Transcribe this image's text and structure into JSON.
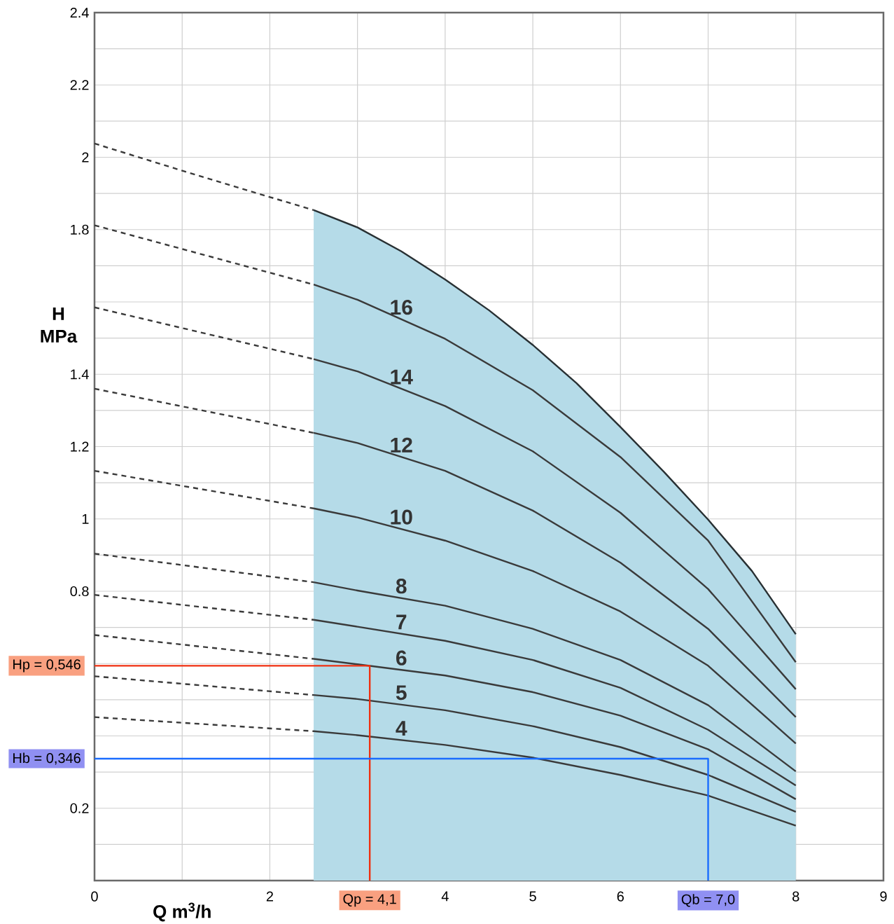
{
  "chart_data": {
    "type": "line",
    "xlabel": "Q m$^{3}$/h",
    "ylabel": "H MPa",
    "xlim": [
      0,
      9
    ],
    "ylim": [
      0,
      2.4
    ],
    "xticks": [
      0,
      {
        "value": 1,
        "label": null
      },
      2,
      {
        "value": 3,
        "label": null
      },
      4,
      5,
      6,
      {
        "value": 7,
        "label": null
      },
      8,
      9
    ],
    "yticks": [
      {
        "value": 0,
        "label": null
      },
      {
        "value": 0.1,
        "label": null
      },
      0.2,
      {
        "value": 0.3,
        "label": null
      },
      {
        "value": 0.4,
        "label": null
      },
      {
        "value": 0.5,
        "label": null
      },
      {
        "value": 0.6,
        "label": null
      },
      {
        "value": 0.7,
        "label": null
      },
      0.8,
      {
        "value": 0.9,
        "label": null
      },
      1,
      {
        "value": 1.1,
        "label": null
      },
      1.2,
      {
        "value": 1.3,
        "label": null
      },
      1.4,
      {
        "value": 1.5,
        "label": null
      },
      {
        "value": 1.6,
        "label": null
      },
      {
        "value": 1.7,
        "label": null
      },
      1.8,
      {
        "value": 1.9,
        "label": null
      },
      2,
      {
        "value": 2.1,
        "label": null
      },
      2.2,
      {
        "value": 2.3,
        "label": null
      },
      2.4
    ],
    "grid": true,
    "series": [
      {
        "name": "16",
        "color": "#3a3a3a",
        "x": [
          2.5,
          3,
          4,
          5,
          6,
          7,
          8
        ],
        "values": [
          1.648,
          1.606,
          1.498,
          1.356,
          1.171,
          0.94,
          0.604
        ]
      },
      {
        "name": "14",
        "color": "#3a3a3a",
        "x": [
          2.5,
          3,
          4,
          5,
          6,
          7,
          8
        ],
        "values": [
          1.442,
          1.408,
          1.312,
          1.187,
          1.017,
          0.806,
          0.529
        ]
      },
      {
        "name": "12",
        "color": "#3a3a3a",
        "x": [
          2.5,
          3,
          4,
          5,
          6,
          7,
          8
        ],
        "values": [
          1.238,
          1.21,
          1.133,
          1.023,
          0.879,
          0.696,
          0.452
        ]
      },
      {
        "name": "10",
        "color": "#3a3a3a",
        "x": [
          2.5,
          3,
          4,
          5,
          6,
          7,
          8
        ],
        "values": [
          1.029,
          1.004,
          0.94,
          0.856,
          0.744,
          0.594,
          0.379
        ]
      },
      {
        "name": "8",
        "color": "#3a3a3a",
        "x": [
          2.5,
          3,
          4,
          5,
          6,
          7,
          8
        ],
        "values": [
          0.825,
          0.802,
          0.76,
          0.696,
          0.61,
          0.485,
          0.302
        ]
      },
      {
        "name": "7",
        "color": "#3a3a3a",
        "x": [
          2.5,
          3,
          4,
          5,
          6,
          7,
          8
        ],
        "values": [
          0.721,
          0.702,
          0.663,
          0.61,
          0.533,
          0.417,
          0.263
        ]
      },
      {
        "name": "6",
        "color": "#3a3a3a",
        "x": [
          2.5,
          3,
          4,
          5,
          6,
          7,
          8
        ],
        "values": [
          0.613,
          0.598,
          0.567,
          0.521,
          0.456,
          0.363,
          0.225
        ]
      },
      {
        "name": "5",
        "color": "#3a3a3a",
        "x": [
          2.5,
          3,
          4,
          5,
          6,
          7,
          8
        ],
        "values": [
          0.513,
          0.502,
          0.471,
          0.427,
          0.369,
          0.292,
          0.19
        ]
      },
      {
        "name": "4",
        "color": "#3a3a3a",
        "x": [
          2.5,
          3,
          4,
          5,
          6,
          7,
          8
        ],
        "values": [
          0.413,
          0.402,
          0.375,
          0.34,
          0.292,
          0.235,
          0.152
        ]
      },
      {
        "color": "#3a3a3a",
        "line_style": "dashed",
        "x": [
          0,
          1,
          2,
          2.5
        ],
        "values": [
          2.038,
          1.963,
          1.89,
          1.854
        ]
      },
      {
        "color": "#3a3a3a",
        "line_style": "dashed",
        "x": [
          0,
          2.5
        ],
        "values": [
          1.812,
          1.648
        ]
      },
      {
        "color": "#3a3a3a",
        "line_style": "dashed",
        "x": [
          0,
          2.5
        ],
        "values": [
          1.585,
          1.442
        ]
      },
      {
        "color": "#3a3a3a",
        "line_style": "dashed",
        "x": [
          0,
          2.5
        ],
        "values": [
          1.36,
          1.238
        ]
      },
      {
        "color": "#3a3a3a",
        "line_style": "dashed",
        "x": [
          0,
          2.5
        ],
        "values": [
          1.133,
          1.029
        ]
      },
      {
        "color": "#3a3a3a",
        "line_style": "dashed",
        "x": [
          0,
          2.5
        ],
        "values": [
          0.904,
          0.825
        ]
      },
      {
        "color": "#3a3a3a",
        "line_style": "dashed",
        "x": [
          0,
          2.5
        ],
        "values": [
          0.79,
          0.721
        ]
      },
      {
        "color": "#3a3a3a",
        "line_style": "dashed",
        "x": [
          0,
          2.5
        ],
        "values": [
          0.679,
          0.613
        ]
      },
      {
        "color": "#3a3a3a",
        "line_style": "dashed",
        "x": [
          0,
          2.5
        ],
        "values": [
          0.565,
          0.513
        ]
      },
      {
        "color": "#3a3a3a",
        "line_style": "dashed",
        "x": [
          0,
          2.5
        ],
        "values": [
          0.452,
          0.413
        ]
      },
      {
        "color": "#f03010",
        "x": [
          0,
          3.14,
          3.14
        ],
        "values": [
          0.594,
          0.594,
          0
        ]
      },
      {
        "color": "#1a6cff",
        "x": [
          0,
          7.0,
          7.0
        ],
        "values": [
          0.337,
          0.337,
          0
        ]
      },
      {
        "type": "area",
        "color": "#b5dbe8",
        "x": [
          2.5,
          3,
          3.5,
          4,
          4.5,
          5,
          5.5,
          6,
          6.5,
          7,
          7.5,
          8
        ],
        "values": [
          1.854,
          1.806,
          1.74,
          1.662,
          1.577,
          1.481,
          1.375,
          1.254,
          1.129,
          0.998,
          0.856,
          0.681
        ]
      }
    ],
    "annotations": [
      {
        "text": "Hp = 0,546",
        "x": 0,
        "y": 0.594
      },
      {
        "text": "Qp = 4,1",
        "x": 3.14,
        "y": 0
      },
      {
        "text": "Hb = 0,346",
        "x": 0,
        "y": 0.337
      },
      {
        "text": "Qb = 7,0",
        "x": 7.0,
        "y": 0
      }
    ]
  }
}
